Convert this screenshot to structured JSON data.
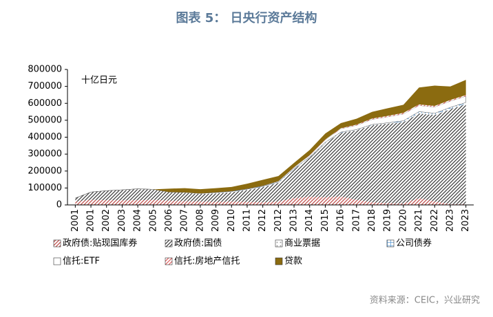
{
  "chart_data": {
    "type": "stacked-area",
    "title": "图表 5： 日央行资产结构",
    "unit_label": "十亿日元",
    "source": "资料来源：CEIC，兴业研究",
    "categories": [
      "2001",
      "2001",
      "2002",
      "2003",
      "2004",
      "2005",
      "2006",
      "2007",
      "2008",
      "2009",
      "2010",
      "2011",
      "2012",
      "2012",
      "2013",
      "2014",
      "2015",
      "2016",
      "2017",
      "2018",
      "2019",
      "2020",
      "2021",
      "2022",
      "2023",
      "2023"
    ],
    "ylim": [
      0,
      800000
    ],
    "yticks": [
      0,
      100000,
      200000,
      300000,
      400000,
      500000,
      600000,
      700000,
      800000
    ],
    "grid": false,
    "series": [
      {
        "name": "政府债:贴现国库券",
        "color": "#c0504d",
        "pattern": "diag",
        "values": [
          20000,
          30000,
          28000,
          27000,
          28000,
          30000,
          25000,
          22000,
          20000,
          18000,
          20000,
          18000,
          15000,
          20000,
          40000,
          48000,
          45000,
          50000,
          30000,
          15000,
          10000,
          8000,
          40000,
          20000,
          5000,
          5000
        ]
      },
      {
        "name": "政府债:国债",
        "color": "#404040",
        "pattern": "diag",
        "values": [
          20000,
          45000,
          55000,
          60000,
          65000,
          60000,
          50000,
          50000,
          45000,
          50000,
          55000,
          70000,
          90000,
          110000,
          170000,
          230000,
          320000,
          375000,
          410000,
          455000,
          470000,
          480000,
          500000,
          510000,
          560000,
          590000
        ]
      },
      {
        "name": "商业票据",
        "color": "#a0a0a0",
        "pattern": "dots",
        "values": [
          0,
          1000,
          1000,
          2000,
          2000,
          2000,
          1000,
          2000,
          3000,
          2000,
          2000,
          2000,
          2000,
          2000,
          2000,
          2000,
          2000,
          2000,
          2000,
          2000,
          2000,
          3000,
          3000,
          3000,
          3000,
          2000
        ]
      },
      {
        "name": "公司债券",
        "color": "#5b9bd5",
        "pattern": "grid",
        "values": [
          0,
          0,
          0,
          0,
          0,
          0,
          0,
          0,
          0,
          3000,
          3000,
          3000,
          3000,
          3000,
          3000,
          3000,
          3000,
          3000,
          3000,
          3000,
          3000,
          6000,
          8000,
          8000,
          8000,
          8000
        ]
      },
      {
        "name": "信托:ETF",
        "color": "#ffffff",
        "pattern": "solid",
        "values": [
          0,
          0,
          0,
          0,
          0,
          0,
          0,
          0,
          0,
          1000,
          1000,
          2000,
          3000,
          5000,
          7000,
          10000,
          15000,
          20000,
          25000,
          30000,
          35000,
          40000,
          36000,
          37000,
          37000,
          37000
        ]
      },
      {
        "name": "信托:房地产信托",
        "color": "#e06666",
        "pattern": "diag",
        "values": [
          0,
          0,
          0,
          0,
          0,
          0,
          0,
          0,
          0,
          100,
          200,
          300,
          300,
          500,
          1000,
          1500,
          2000,
          3000,
          4000,
          5000,
          6000,
          6500,
          6600,
          6600,
          6600,
          6600
        ]
      },
      {
        "name": "贷款",
        "color": "#8b6b10",
        "pattern": "solid",
        "values": [
          0,
          0,
          0,
          0,
          0,
          0,
          20000,
          25000,
          25000,
          25000,
          25000,
          30000,
          35000,
          30000,
          25000,
          30000,
          35000,
          30000,
          35000,
          40000,
          45000,
          48000,
          100000,
          120000,
          80000,
          90000
        ]
      }
    ]
  }
}
